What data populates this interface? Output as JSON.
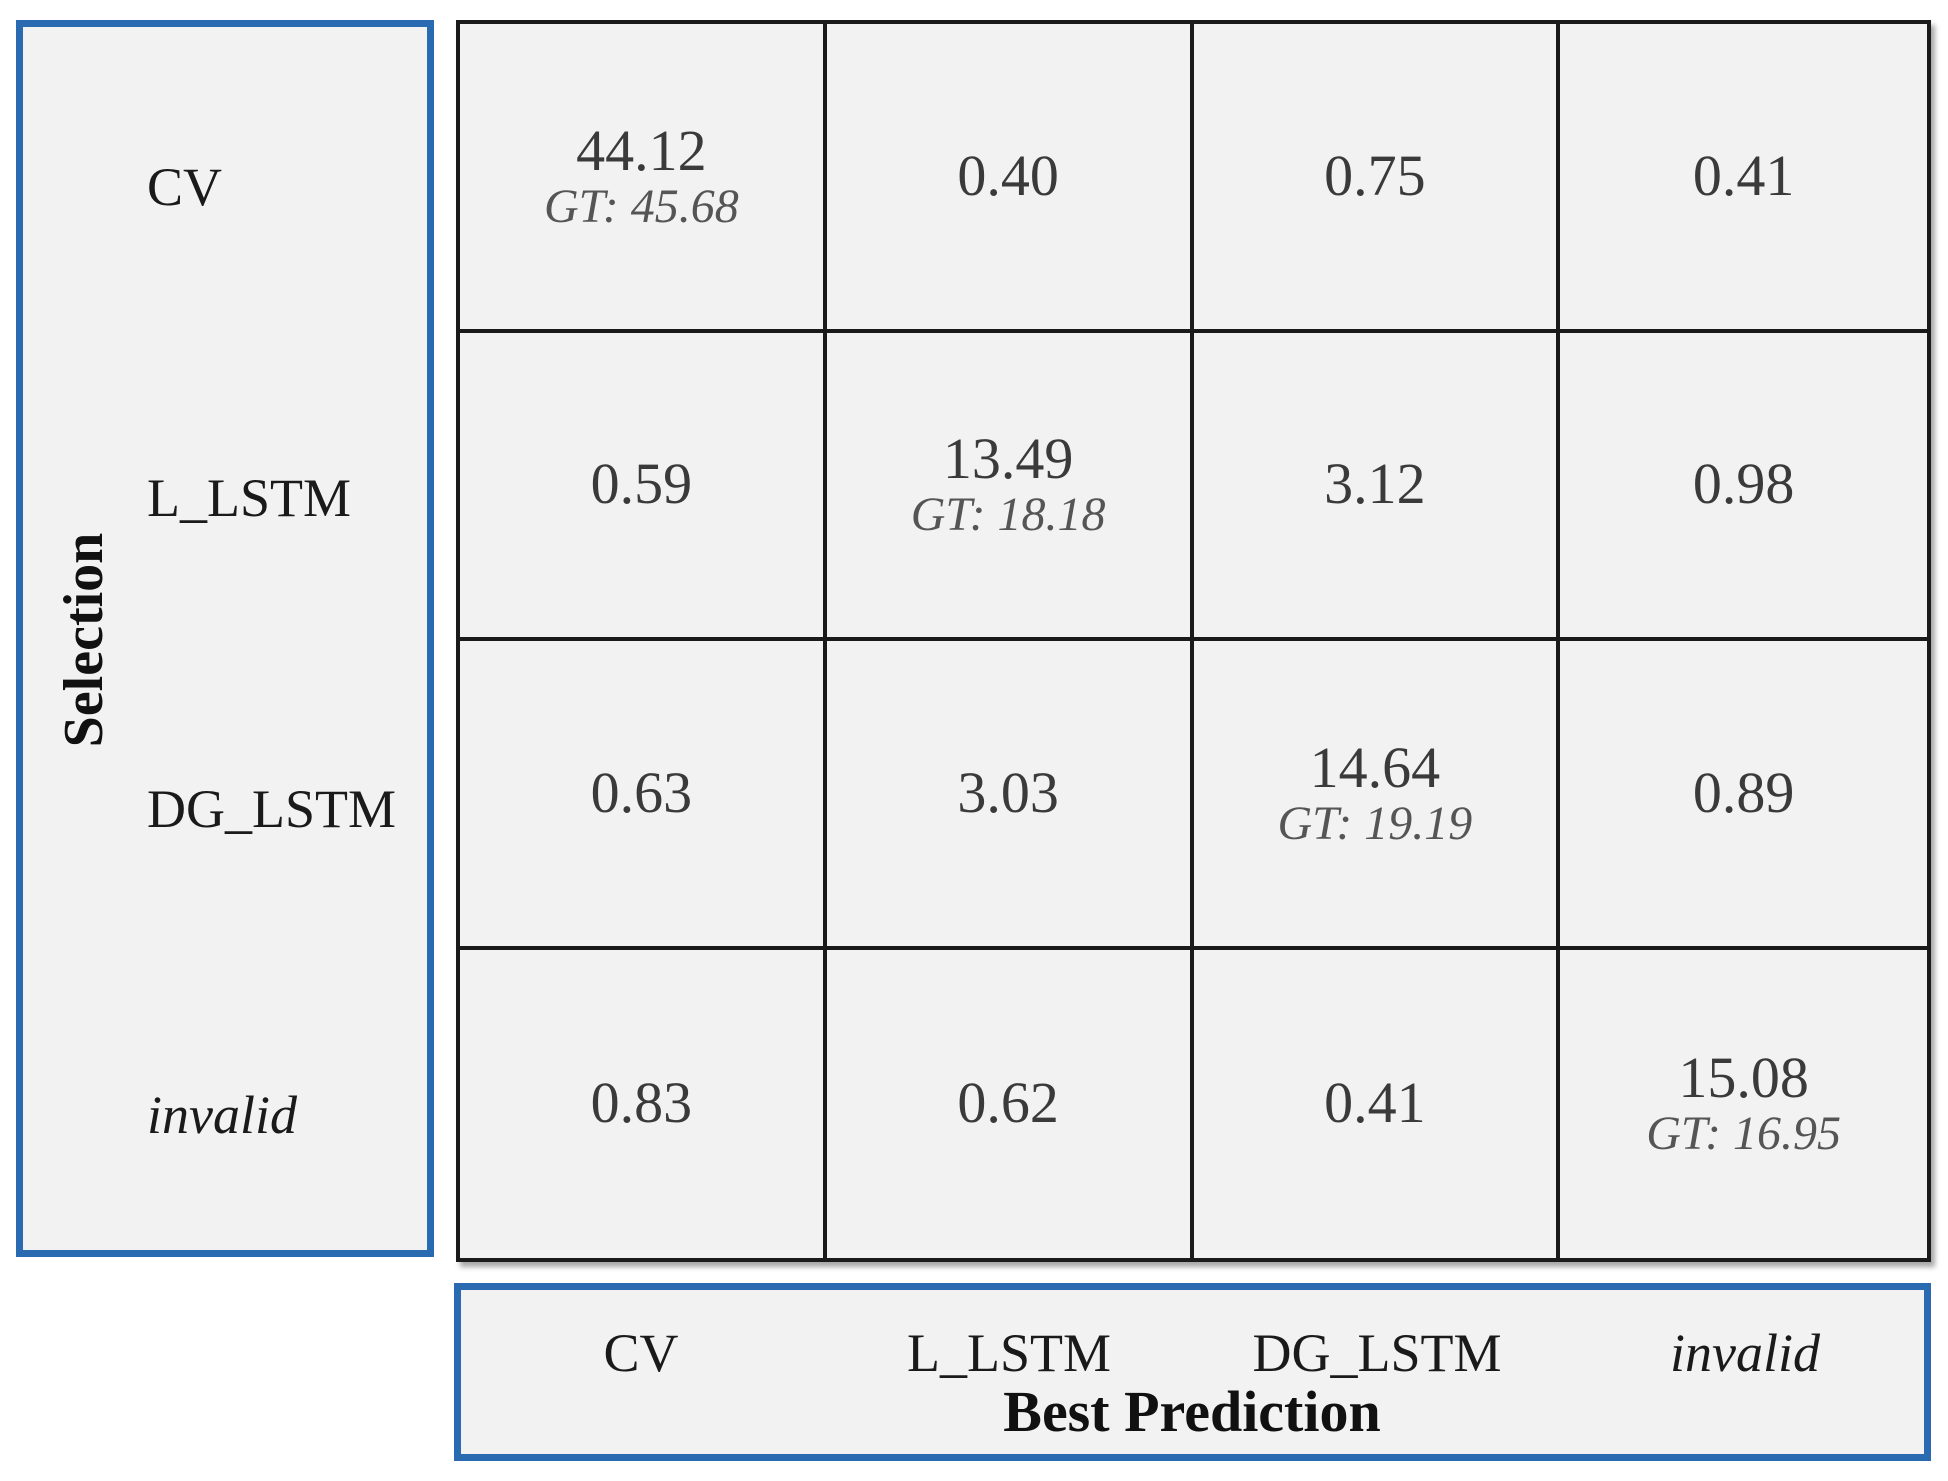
{
  "chart_data": {
    "type": "heatmap",
    "row_axis_label": "Selection",
    "col_axis_label": "Best Prediction",
    "rows": [
      {
        "label": "CV",
        "italic": false
      },
      {
        "label": "L_LSTM",
        "italic": false
      },
      {
        "label": "DG_LSTM",
        "italic": false
      },
      {
        "label": "invalid",
        "italic": true
      }
    ],
    "columns": [
      {
        "label": "CV",
        "italic": false
      },
      {
        "label": "L_LSTM",
        "italic": false
      },
      {
        "label": "DG_LSTM",
        "italic": false
      },
      {
        "label": "invalid",
        "italic": true
      }
    ],
    "values": [
      [
        "44.12",
        "0.40",
        "0.75",
        "0.41"
      ],
      [
        "0.59",
        "13.49",
        "3.12",
        "0.98"
      ],
      [
        "0.63",
        "3.03",
        "14.64",
        "0.89"
      ],
      [
        "0.83",
        "0.62",
        "0.41",
        "15.08"
      ]
    ],
    "gt_labels": [
      [
        "GT: 45.68",
        null,
        null,
        null
      ],
      [
        null,
        "GT: 18.18",
        null,
        null
      ],
      [
        null,
        null,
        "GT: 19.19",
        null
      ],
      [
        null,
        null,
        null,
        "GT: 16.95"
      ]
    ],
    "colors": {
      "panel_border": "#2a6ab1",
      "cell_background": "#f2f2f2",
      "grid_line": "#1a1a1a"
    }
  }
}
